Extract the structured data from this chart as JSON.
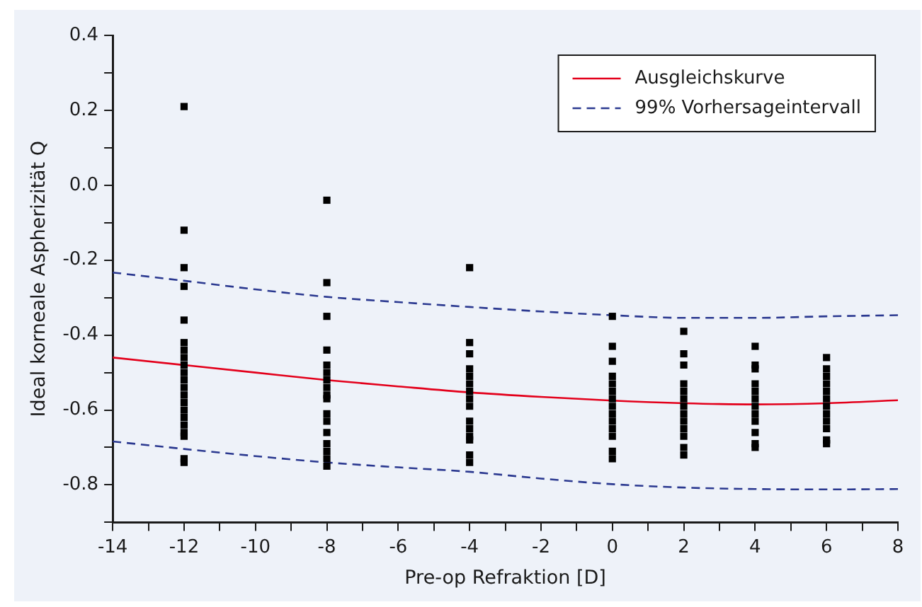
{
  "chart_data": {
    "type": "scatter",
    "xlabel": "Pre-op Refraktion [D]",
    "ylabel": "Ideal korneale Aspherizität Q",
    "xlim": [
      -14,
      8
    ],
    "ylim": [
      -0.9,
      0.4
    ],
    "xticks": [
      -14,
      {
        "value": -13,
        "label": null
      },
      -12,
      {
        "value": -11,
        "label": null
      },
      -10,
      {
        "value": -9,
        "label": null
      },
      -8,
      {
        "value": -7,
        "label": null
      },
      -6,
      {
        "value": -5,
        "label": null
      },
      -4,
      {
        "value": -3,
        "label": null
      },
      -2,
      {
        "value": -1,
        "label": null
      },
      0,
      {
        "value": 1,
        "label": null
      },
      2,
      {
        "value": 3,
        "label": null
      },
      4,
      {
        "value": 5,
        "label": null
      },
      6,
      {
        "value": 7,
        "label": null
      },
      8
    ],
    "yticks": [
      {
        "value": -0.9,
        "label": null
      },
      -0.8,
      {
        "value": -0.7,
        "label": null
      },
      -0.6,
      {
        "value": -0.5,
        "label": null
      },
      -0.4,
      {
        "value": -0.3,
        "label": null
      },
      -0.2,
      {
        "value": -0.1,
        "label": null
      },
      {
        "value": 0,
        "label": "0.0"
      },
      {
        "value": 0.1,
        "label": null
      },
      0.2,
      {
        "value": 0.3,
        "label": null
      },
      0.4
    ],
    "grid": false,
    "legend": "top right",
    "series": [
      {
        "color": "#000000",
        "marker": "square",
        "x": [
          -12,
          -12,
          -12,
          -12,
          -12,
          -12,
          -12,
          -12,
          -12,
          -12,
          -12,
          -12,
          -12,
          -12,
          -12,
          -12,
          -12,
          -12,
          -12,
          -12,
          -12,
          -8,
          -8,
          -8,
          -8,
          -8,
          -8,
          -8,
          -8,
          -8,
          -8,
          -8,
          -8,
          -8,
          -8,
          -8,
          -8,
          -8,
          -4,
          -4,
          -4,
          -4,
          -4,
          -4,
          -4,
          -4,
          -4,
          -4,
          -4,
          -4,
          -4,
          -4,
          -4,
          0,
          0,
          0,
          0,
          0,
          0,
          0,
          0,
          0,
          0,
          0,
          0,
          0,
          0,
          2,
          2,
          2,
          2,
          2,
          2,
          2,
          2,
          2,
          2,
          2,
          2,
          2,
          4,
          4,
          4,
          4,
          4,
          4,
          4,
          4,
          4,
          4,
          4,
          4,
          6,
          6,
          6,
          6,
          6,
          6,
          6,
          6,
          6,
          6,
          6,
          6
        ],
        "values": [
          0.21,
          -0.12,
          -0.22,
          -0.27,
          -0.36,
          -0.42,
          -0.44,
          -0.46,
          -0.48,
          -0.5,
          -0.52,
          -0.54,
          -0.56,
          -0.58,
          -0.6,
          -0.62,
          -0.64,
          -0.66,
          -0.67,
          -0.73,
          -0.74,
          -0.04,
          -0.26,
          -0.35,
          -0.44,
          -0.48,
          -0.5,
          -0.52,
          -0.54,
          -0.56,
          -0.57,
          -0.61,
          -0.63,
          -0.66,
          -0.69,
          -0.71,
          -0.73,
          -0.75,
          -0.22,
          -0.42,
          -0.45,
          -0.49,
          -0.51,
          -0.53,
          -0.55,
          -0.57,
          -0.59,
          -0.63,
          -0.65,
          -0.67,
          -0.68,
          -0.72,
          -0.74,
          -0.35,
          -0.43,
          -0.47,
          -0.51,
          -0.53,
          -0.55,
          -0.57,
          -0.59,
          -0.61,
          -0.63,
          -0.65,
          -0.67,
          -0.71,
          -0.73,
          -0.39,
          -0.45,
          -0.48,
          -0.53,
          -0.55,
          -0.57,
          -0.59,
          -0.61,
          -0.63,
          -0.65,
          -0.67,
          -0.7,
          -0.72,
          -0.43,
          -0.48,
          -0.49,
          -0.53,
          -0.55,
          -0.57,
          -0.59,
          -0.61,
          -0.63,
          -0.66,
          -0.69,
          -0.7,
          -0.46,
          -0.49,
          -0.51,
          -0.53,
          -0.55,
          -0.57,
          -0.59,
          -0.61,
          -0.63,
          -0.65,
          -0.68,
          -0.69
        ]
      },
      {
        "type": "line",
        "name": "Ausgleichskurve",
        "color": "#e3001b",
        "marker": "none",
        "line_style": "solid",
        "x": [
          -14,
          -12,
          -10,
          -8,
          -6,
          -4,
          -2,
          0,
          2,
          4,
          6,
          8
        ],
        "values": [
          -0.46,
          -0.48,
          -0.5,
          -0.52,
          -0.537,
          -0.553,
          -0.565,
          -0.575,
          -0.582,
          -0.585,
          -0.582,
          -0.574
        ]
      },
      {
        "type": "line",
        "name": "99% Vorhersageintervall",
        "color": "#2b3990",
        "marker": "none",
        "line_style": "dashed",
        "x": [
          -14,
          -12,
          -10,
          -8,
          -6,
          -4,
          -2,
          0,
          2,
          4,
          6,
          8
        ],
        "values": [
          -0.233,
          -0.255,
          -0.278,
          -0.298,
          -0.312,
          -0.325,
          -0.337,
          -0.347,
          -0.354,
          -0.354,
          -0.35,
          -0.347
        ]
      },
      {
        "type": "line",
        "color": "#2b3990",
        "marker": "none",
        "line_style": "dashed",
        "x": [
          -14,
          -12,
          -10,
          -8,
          -6,
          -4,
          -2,
          0,
          2,
          4,
          6,
          8
        ],
        "values": [
          -0.684,
          -0.704,
          -0.723,
          -0.74,
          -0.753,
          -0.765,
          -0.783,
          -0.798,
          -0.807,
          -0.811,
          -0.812,
          -0.811
        ]
      }
    ]
  }
}
